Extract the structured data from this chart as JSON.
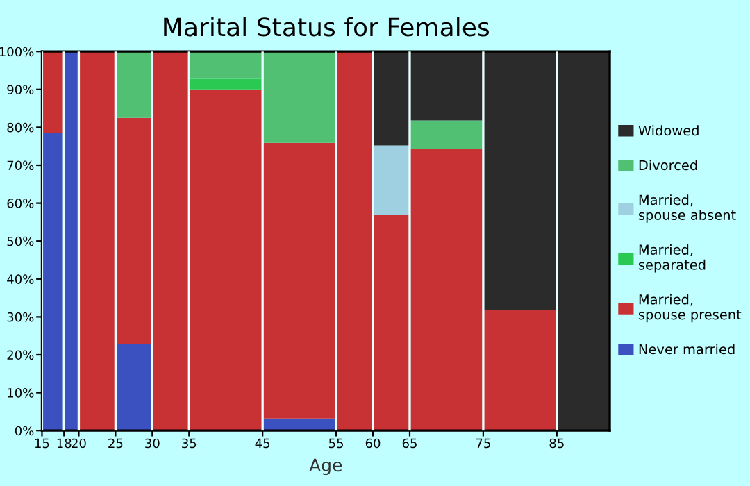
{
  "chart_data": {
    "type": "bar",
    "stacked": true,
    "title": "Marital Status for Females",
    "xlabel": "Age",
    "x": [
      16.5,
      19,
      22.5,
      27.5,
      32.5,
      40,
      50,
      57.5,
      62.5,
      70,
      80,
      88.6
    ],
    "xlim": [
      15,
      92.2
    ],
    "xticks": [
      15,
      18,
      20,
      25,
      30,
      35,
      45,
      55,
      60,
      65,
      75,
      85
    ],
    "ylim": [
      0,
      100
    ],
    "yticks": [
      {
        "value": 0,
        "label": "0%"
      },
      {
        "value": 10,
        "label": "10%"
      },
      {
        "value": 20,
        "label": "20%"
      },
      {
        "value": 30,
        "label": "30%"
      },
      {
        "value": 40,
        "label": "40%"
      },
      {
        "value": 50,
        "label": "50%"
      },
      {
        "value": 60,
        "label": "60%"
      },
      {
        "value": 70,
        "label": "70%"
      },
      {
        "value": 80,
        "label": "80%"
      },
      {
        "value": 90,
        "label": "90%"
      },
      {
        "value": 100,
        "label": "100%"
      }
    ],
    "legend": "right",
    "grid": "x",
    "series": [
      {
        "name": "Never married",
        "color": "#3c51c0",
        "values": [
          78.6,
          100,
          0,
          22.9,
          0,
          0,
          3.2,
          0,
          0,
          0,
          0,
          0
        ]
      },
      {
        "name": "Married,\nspouse present",
        "color": "#c93234",
        "values": [
          21.4,
          0,
          100,
          59.6,
          100,
          90.0,
          72.7,
          100,
          56.8,
          74.4,
          31.7,
          0
        ]
      },
      {
        "name": "Married,\nseparated",
        "color": "#2ac952",
        "values": [
          0,
          0,
          0,
          0,
          0,
          2.8,
          0,
          0,
          0,
          0,
          0,
          0
        ]
      },
      {
        "name": "Married,\nspouse absent",
        "color": "#9fd0e1",
        "values": [
          0,
          0,
          0,
          0,
          0,
          0,
          0,
          0,
          18.4,
          0,
          0,
          0
        ]
      },
      {
        "name": "Divorced",
        "color": "#52c073",
        "values": [
          0,
          0,
          0,
          17.5,
          0,
          7.2,
          24.1,
          0,
          0,
          7.4,
          0,
          0
        ]
      },
      {
        "name": "Widowed",
        "color": "#2b2b2b",
        "values": [
          0,
          0,
          0,
          0,
          0,
          0,
          0,
          0,
          24.8,
          18.2,
          68.3,
          100
        ]
      }
    ]
  }
}
